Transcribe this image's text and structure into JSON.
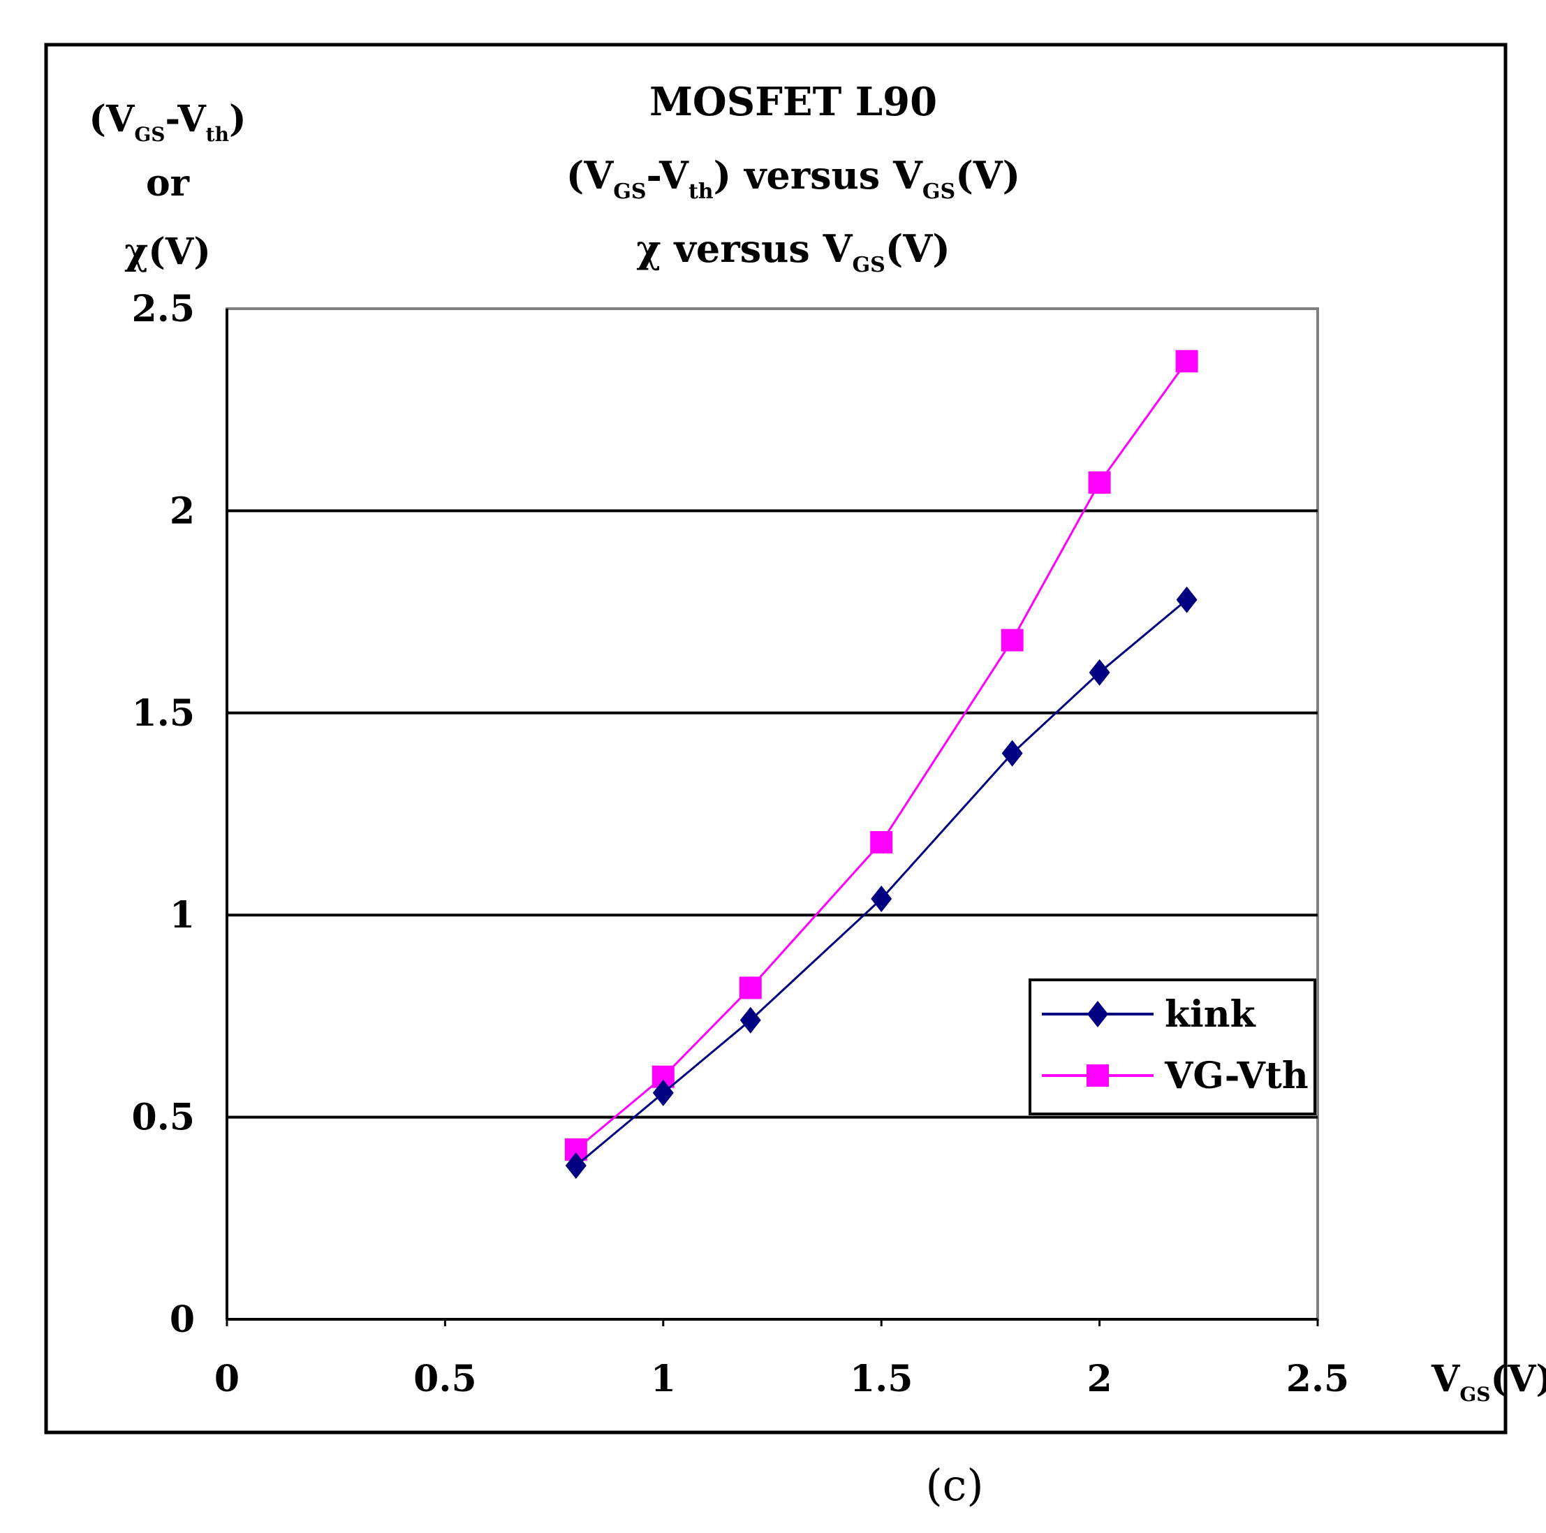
{
  "chart_data": {
    "type": "line",
    "title": {
      "line1": "MOSFET L90",
      "line2": {
        "pre": "(V",
        "sub1": "GS",
        "mid": "-V",
        "sub2": "th",
        "post": ") versus V",
        "sub3": "GS",
        "end": "(V)"
      },
      "line3": {
        "pre": "χ versus V",
        "sub": "GS",
        "end": "(V)"
      }
    },
    "ylabel": {
      "line1": {
        "pre": "(V",
        "sub1": "GS",
        "mid": "-V",
        "sub2": "th",
        "post": ")"
      },
      "line2": "or",
      "line3": "χ(V)"
    },
    "xlabel": {
      "pre": "V",
      "sub": "GS",
      "end": "(V)"
    },
    "xlim": [
      0,
      2.5
    ],
    "ylim": [
      0,
      2.5
    ],
    "xticks": [
      "0",
      "0.5",
      "1",
      "1.5",
      "2",
      "2.5"
    ],
    "yticks": [
      "0",
      "0.5",
      "1",
      "1.5",
      "2",
      "2.5"
    ],
    "grid": "horizontal major lines",
    "legend_position": "right, lower-middle",
    "series": [
      {
        "name": "kink",
        "color": "#000080",
        "marker": "diamond",
        "x": [
          0.8,
          1.0,
          1.2,
          1.5,
          1.8,
          2.0,
          2.2
        ],
        "y": [
          0.38,
          0.56,
          0.74,
          1.04,
          1.4,
          1.6,
          1.78
        ]
      },
      {
        "name": "VG-Vth",
        "color": "#ff00ff",
        "marker": "square",
        "x": [
          0.8,
          1.0,
          1.2,
          1.5,
          1.8,
          2.0,
          2.2
        ],
        "y": [
          0.42,
          0.6,
          0.82,
          1.18,
          1.68,
          2.07,
          2.37
        ]
      }
    ]
  },
  "caption": "(c)"
}
